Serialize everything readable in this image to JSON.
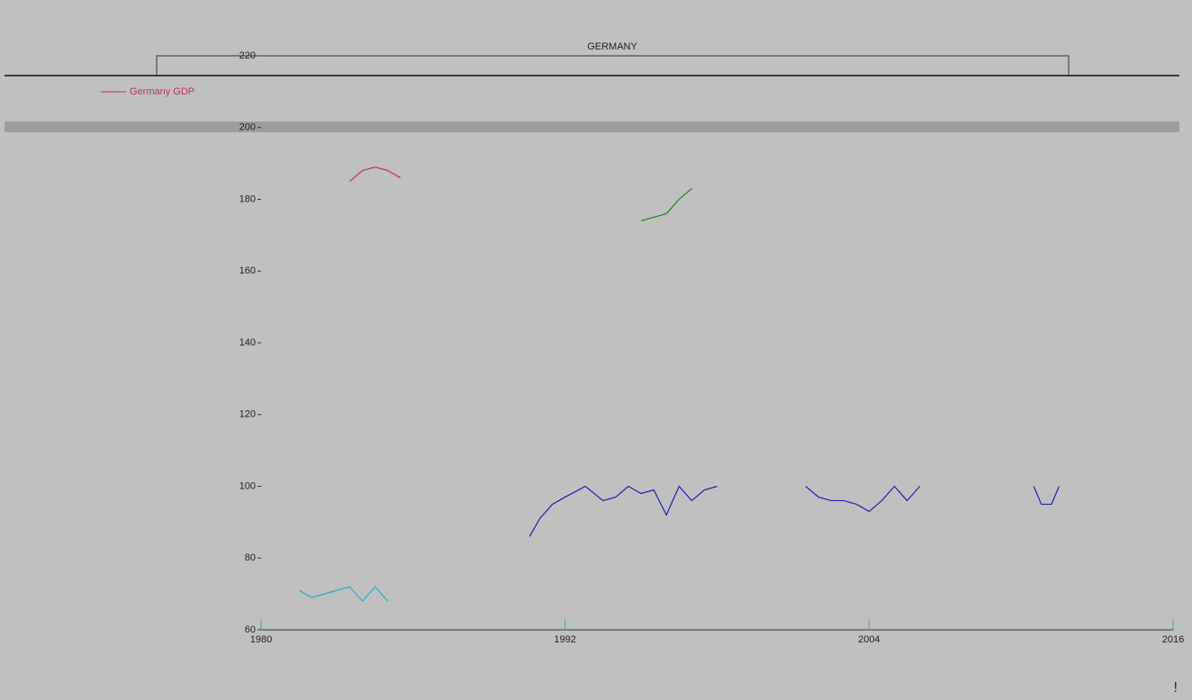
{
  "chart_data": {
    "type": "line",
    "title": "GERMANY",
    "xlim": [
      1980,
      2016
    ],
    "xticks": [
      1980,
      1992,
      2004,
      2016
    ],
    "ylim": [
      60,
      220
    ],
    "yticks": [
      60,
      80,
      100,
      120,
      140,
      160,
      180,
      200,
      220
    ],
    "grid": false,
    "legend": "upper left",
    "series": [
      {
        "name": "Germany GDP",
        "color": "#c03060",
        "x": [
          1983.5,
          1984,
          1984.5,
          1985,
          1985.5
        ],
        "values": [
          185,
          188,
          189,
          188,
          186
        ]
      },
      {
        "color": "#2020b0",
        "x": [
          1990.6,
          1991,
          1991.5,
          1992,
          1992.8,
          1993.5,
          1994,
          1994.5,
          1995,
          1995.5,
          1996,
          1996.5,
          1997,
          1997.5,
          1998,
          2000,
          2001.5,
          2002,
          2002.5,
          2003,
          2003.5,
          2004,
          2004.5,
          2005,
          2005.5,
          2006,
          2007,
          2010.5,
          2010.8,
          2011.2,
          2011.5
        ],
        "values": [
          86,
          91,
          95,
          97,
          100,
          96,
          97,
          100,
          98,
          99,
          92,
          100,
          96,
          99,
          100,
          null,
          100,
          97,
          96,
          96,
          95,
          93,
          96,
          100,
          96,
          100,
          null,
          100,
          95,
          95,
          100
        ]
      },
      {
        "color": "#20b0c0",
        "x": [
          1981.5,
          1982,
          1982.5,
          1983,
          1983.5,
          1984,
          1984.5,
          1985
        ],
        "values": [
          71,
          69,
          70,
          71,
          72,
          68,
          72,
          68
        ]
      },
      {
        "color": "#208020",
        "x": [
          1995,
          1995.5,
          1996,
          1996.5,
          1997
        ],
        "values": [
          174,
          175,
          176,
          180,
          183
        ]
      }
    ]
  },
  "note": "!"
}
